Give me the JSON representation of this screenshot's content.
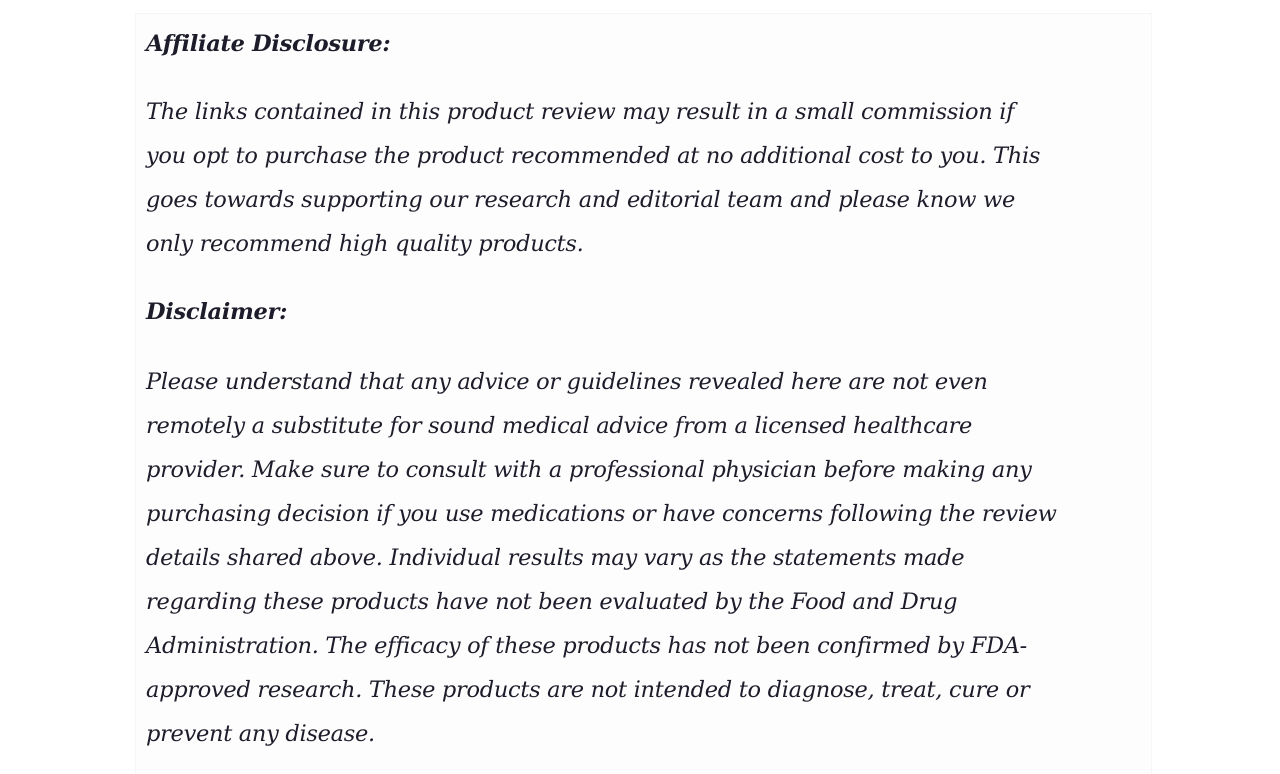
{
  "sections": [
    {
      "heading": "Affiliate Disclosure:",
      "lines": [
        "The links contained in this product review may result in a small commission if",
        "you opt to purchase the product recommended at no additional cost to you. This",
        "goes towards supporting our research and editorial team and please know we",
        "only recommend high quality products."
      ]
    },
    {
      "heading": "Disclaimer:",
      "lines": [
        "Please understand that any advice or guidelines revealed here are not even",
        "remotely a substitute for sound medical advice from a licensed healthcare",
        "provider. Make sure to consult with a professional physician before making any",
        "purchasing decision if you use medications or have concerns following the review",
        "details shared above. Individual results may vary as the statements made",
        "regarding these products have not been evaluated by the Food and Drug",
        "Administration. The efficacy of these products has not been confirmed by FDA-",
        "approved research. These products are not intended to diagnose, treat, cure or",
        "prevent any disease."
      ]
    }
  ]
}
